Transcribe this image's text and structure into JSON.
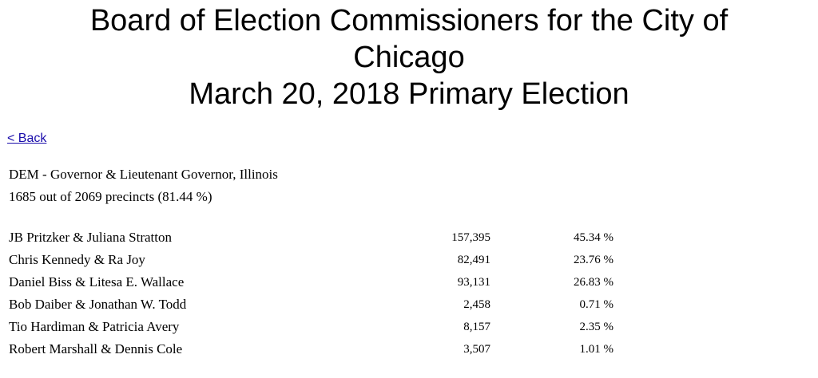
{
  "header": {
    "title_line1": "Board of Election Commissioners for the City of",
    "title_line2": "Chicago",
    "title_line3": "March 20, 2018 Primary Election"
  },
  "back_link": "< Back",
  "contest": {
    "name": "DEM - Governor & Lieutenant Governor, Illinois",
    "precincts": "1685 out of 2069 precincts (81.44 %)"
  },
  "results": [
    {
      "candidate": "JB Pritzker & Juliana Stratton",
      "votes": "157,395",
      "percent": "45.34 %"
    },
    {
      "candidate": "Chris Kennedy & Ra Joy",
      "votes": "82,491",
      "percent": "23.76 %"
    },
    {
      "candidate": "Daniel Biss & Litesa E. Wallace",
      "votes": "93,131",
      "percent": "26.83 %"
    },
    {
      "candidate": "Bob Daiber & Jonathan W. Todd",
      "votes": "2,458",
      "percent": "0.71 %"
    },
    {
      "candidate": "Tio Hardiman & Patricia Avery",
      "votes": "8,157",
      "percent": "2.35 %"
    },
    {
      "candidate": "Robert Marshall & Dennis Cole",
      "votes": "3,507",
      "percent": "1.01 %"
    }
  ]
}
